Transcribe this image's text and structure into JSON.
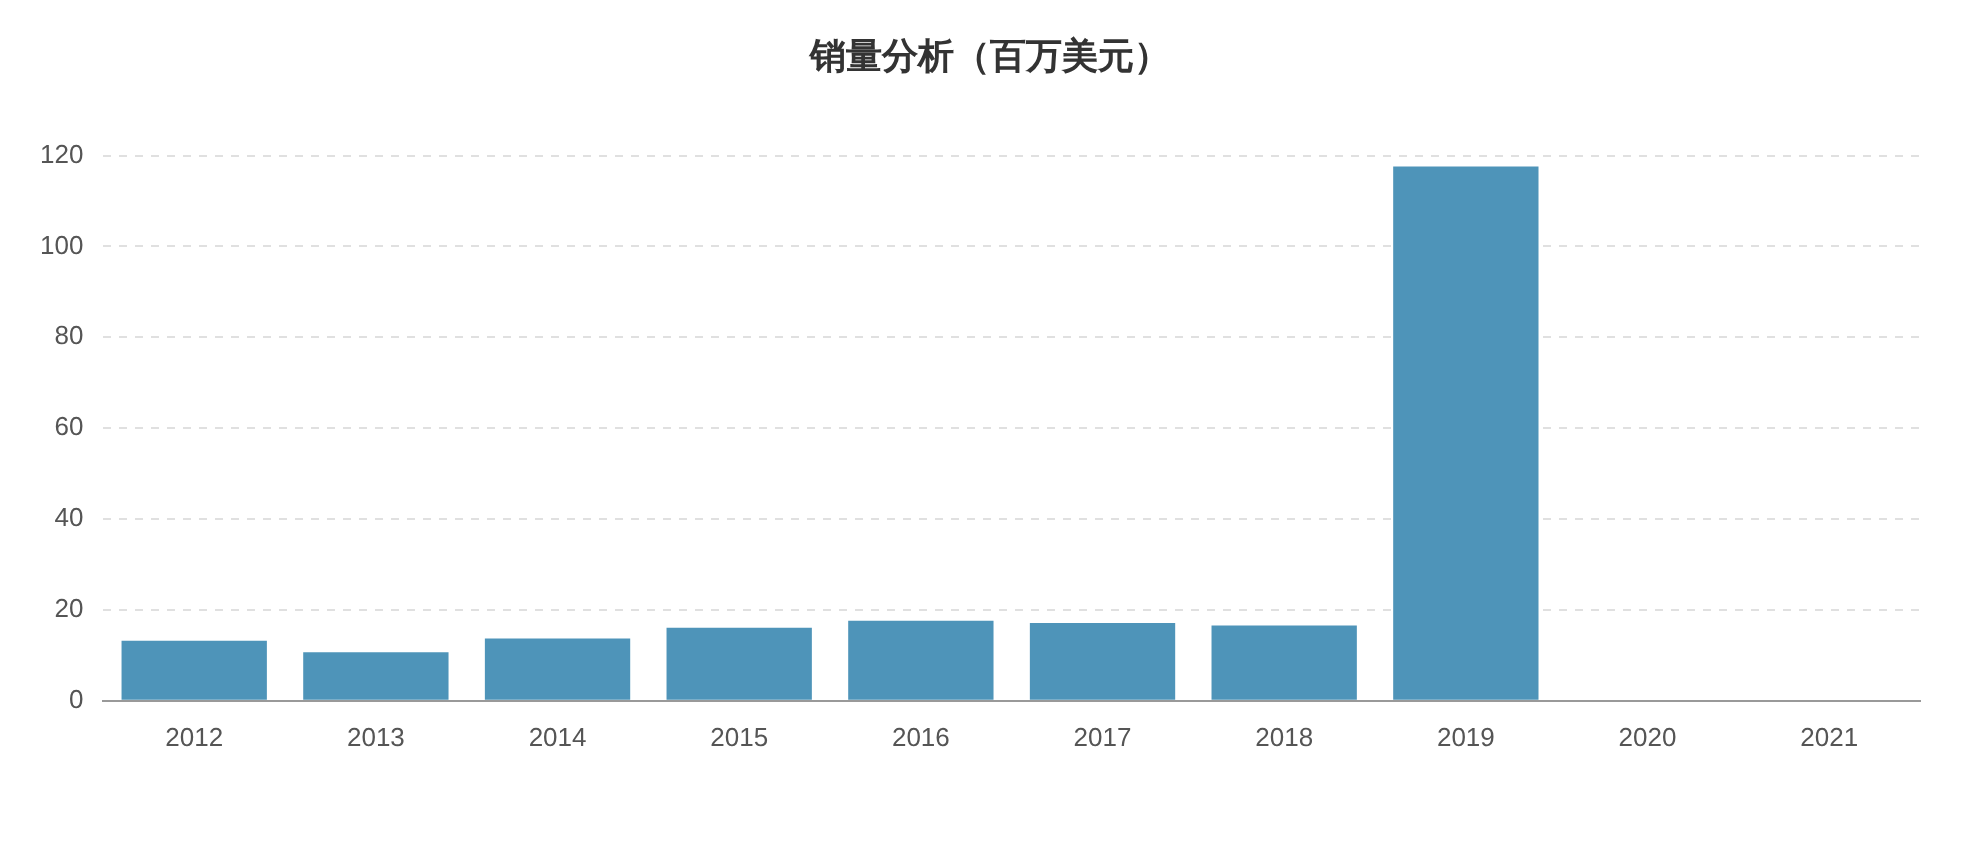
{
  "chart_data": {
    "type": "bar",
    "title": "销量分析（百万美元）",
    "categories": [
      "2012",
      "2013",
      "2014",
      "2015",
      "2016",
      "2017",
      "2018",
      "2019",
      "2020",
      "2021"
    ],
    "values": [
      13.2,
      10.7,
      13.7,
      16.1,
      17.6,
      17.1,
      16.6,
      117.6,
      null,
      null
    ],
    "color": "#4e94b9",
    "ylim": [
      0,
      120
    ],
    "yticks": [
      0,
      20,
      40,
      60,
      80,
      100,
      120
    ],
    "grid": "y"
  }
}
